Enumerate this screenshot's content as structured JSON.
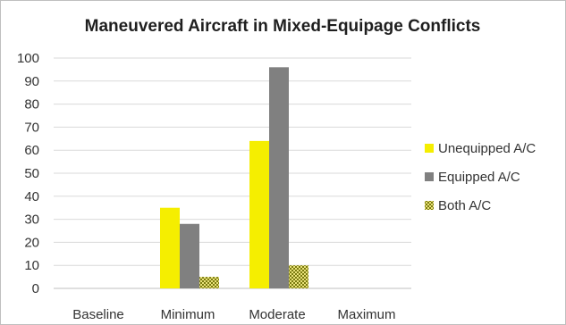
{
  "chart_data": {
    "type": "bar",
    "title": "Maneuvered Aircraft in Mixed-Equipage Conflicts",
    "categories": [
      "Baseline",
      "Minimum",
      "Moderate",
      "Maximum"
    ],
    "series": [
      {
        "name": "Unequipped A/C",
        "values": [
          0,
          35,
          64,
          0
        ],
        "color": "#f5ee00"
      },
      {
        "name": "Equipped A/C",
        "values": [
          0,
          28,
          96,
          0
        ],
        "color": "#808080"
      },
      {
        "name": "Both A/C",
        "values": [
          0,
          5,
          10,
          0
        ],
        "color": "#c8c414",
        "pattern": "checkered"
      }
    ],
    "ylim": [
      0,
      100
    ],
    "yticks": [
      "0",
      "10",
      "20",
      "30",
      "40",
      "50",
      "60",
      "70",
      "80",
      "90",
      "100"
    ],
    "grid": true,
    "legend": "right"
  }
}
